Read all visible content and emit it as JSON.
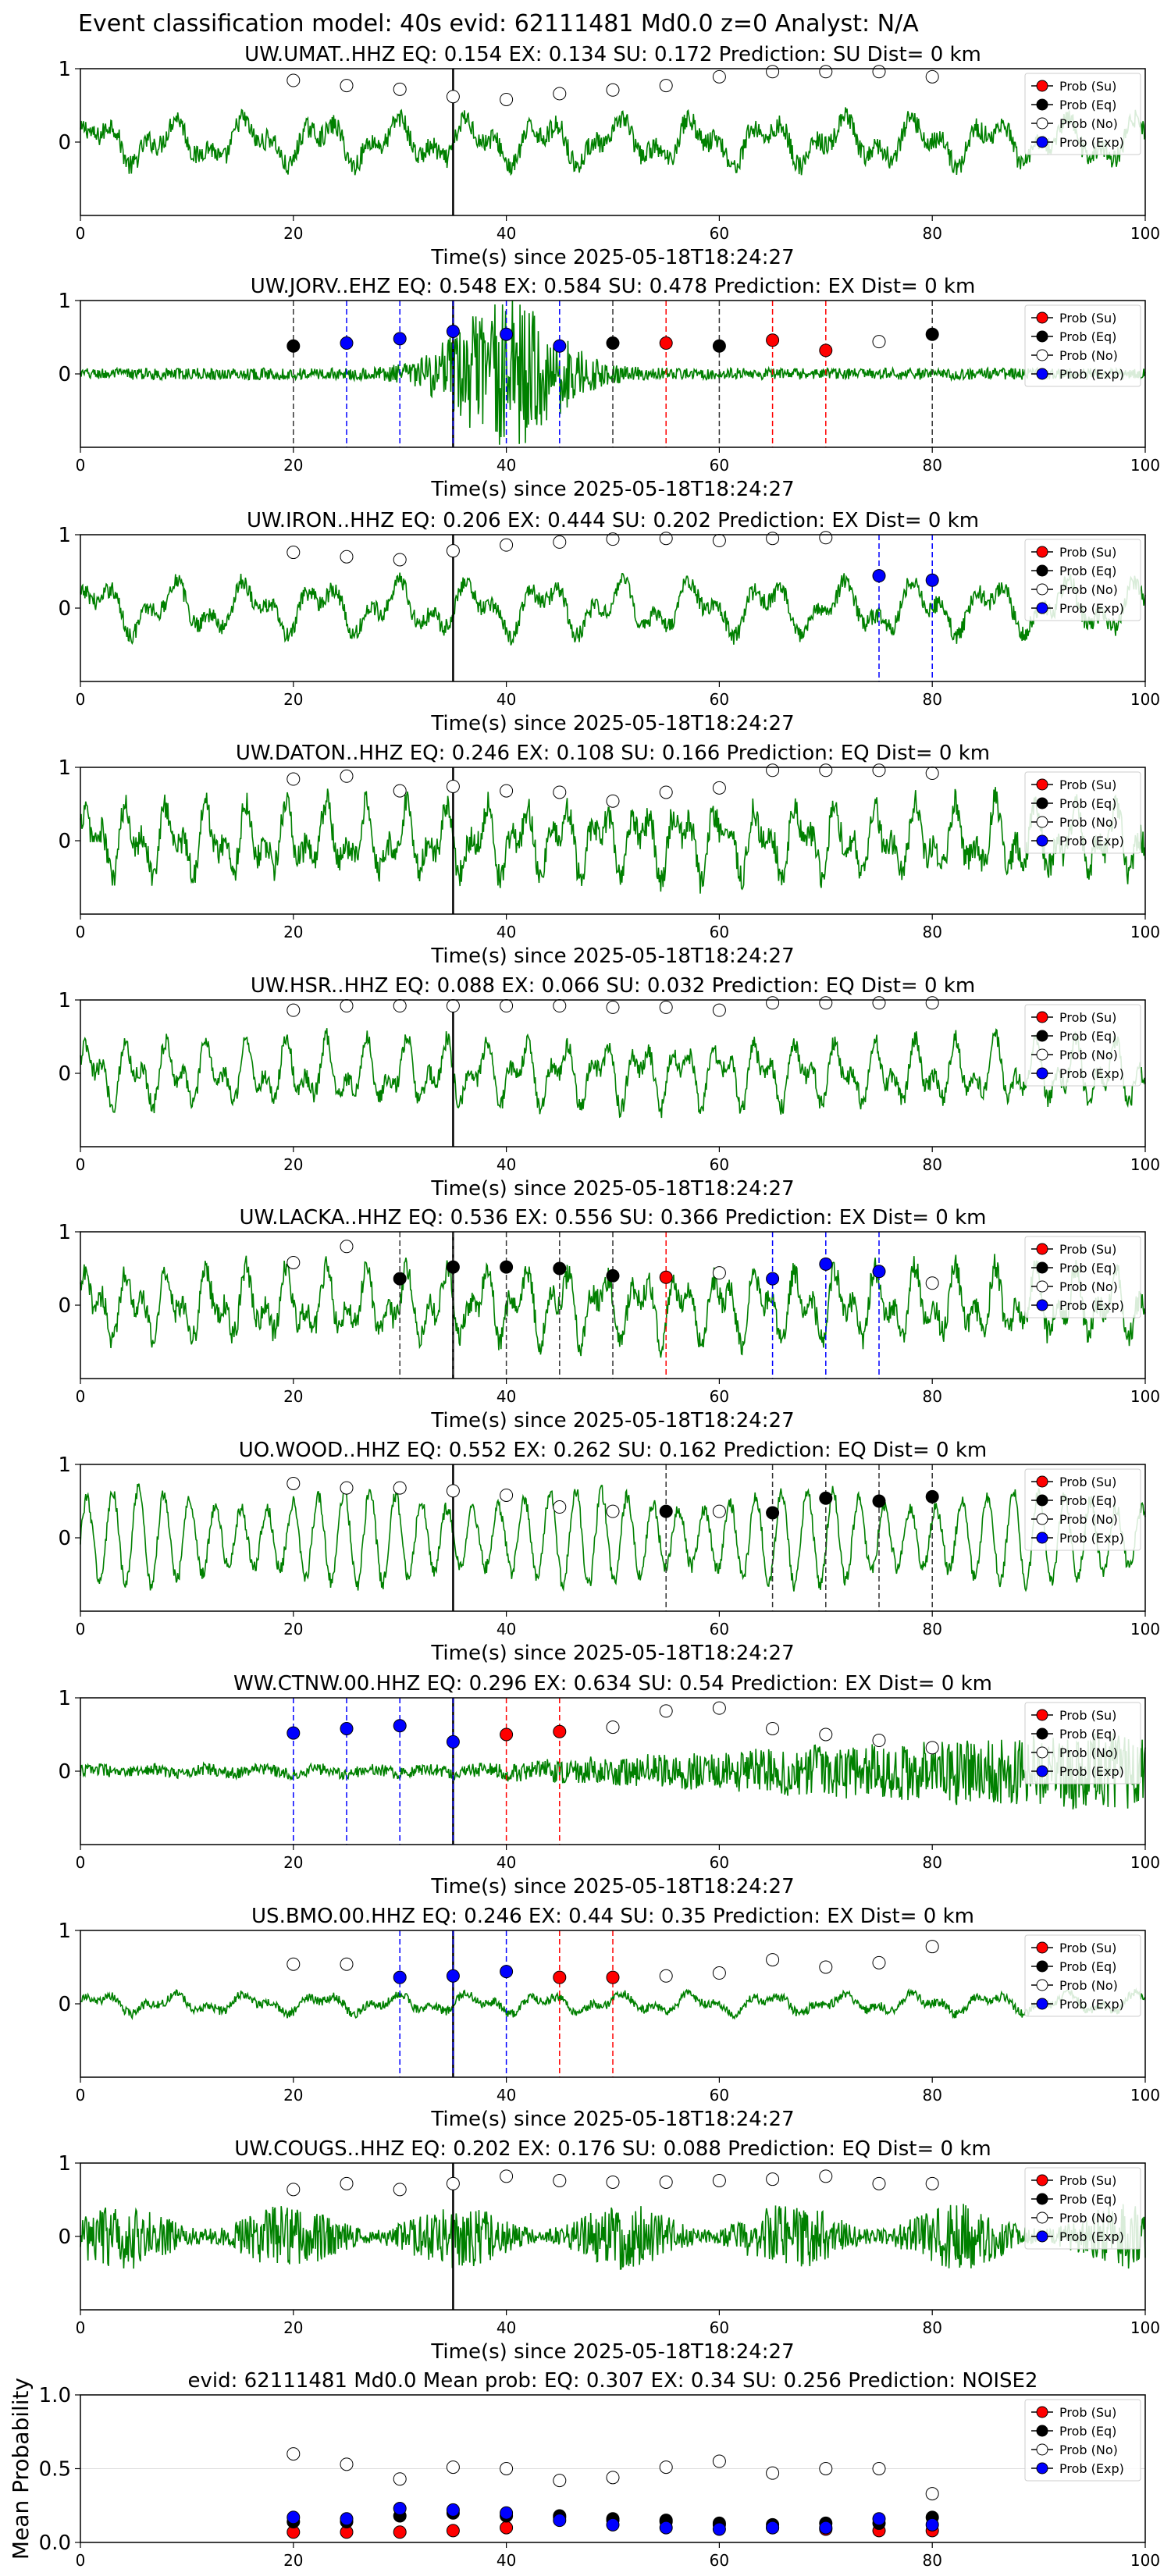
{
  "page_title": "Event classification model: 40s evid: 62111481 Md0.0 z=0 Analyst: N/A",
  "colors": {
    "su": "#ff0000",
    "eq": "#000000",
    "no": "#ffffff",
    "exp": "#0000ff",
    "trace": "#008000",
    "pick_line": "#000000"
  },
  "legend_labels": [
    "Prob (Su)",
    "Prob (Eq)",
    "Prob (No)",
    "Prob (Exp)"
  ],
  "chart_data": [
    {
      "type": "line",
      "title": "UW.UMAT..HHZ   EQ: 0.154  EX: 0.134  SU: 0.172   Prediction: SU    Dist= 0 km",
      "xlabel": "Time(s) since 2025-05-18T18:24:27",
      "xlim": [
        0,
        100
      ],
      "xticks": [
        0,
        20,
        40,
        60,
        80,
        100
      ],
      "ylim": [
        -1,
        1
      ],
      "yticks": [
        0,
        1
      ],
      "trace": {
        "name": "waveform",
        "amplitude": 0.35,
        "character": "low-freq",
        "noise": 0.4
      },
      "pick_time": 35,
      "points": {
        "x": [
          20,
          25,
          30,
          35,
          40,
          45,
          50,
          55,
          60,
          65,
          70,
          75,
          80
        ],
        "y": [
          0.84,
          0.77,
          0.72,
          0.62,
          0.58,
          0.66,
          0.71,
          0.77,
          0.89,
          0.96,
          0.96,
          0.96,
          0.89
        ],
        "classes": [
          "no",
          "no",
          "no",
          "no",
          "no",
          "no",
          "no",
          "no",
          "no",
          "no",
          "no",
          "no",
          "no"
        ]
      }
    },
    {
      "type": "line",
      "title": "UW.JORV..EHZ   EQ: 0.548  EX: 0.584  SU: 0.478   Prediction: EX    Dist= 0 km",
      "xlabel": "Time(s) since 2025-05-18T18:24:27",
      "xlim": [
        0,
        100
      ],
      "xticks": [
        0,
        20,
        40,
        60,
        80,
        100
      ],
      "ylim": [
        -1,
        1
      ],
      "yticks": [
        0,
        1
      ],
      "trace": {
        "name": "waveform",
        "amplitude": 0.08,
        "character": "quiet-burst",
        "burst_center": 40,
        "burst_width": 6,
        "burst_amp": 0.95
      },
      "pick_time": 35,
      "points": {
        "x": [
          20,
          25,
          30,
          35,
          40,
          45,
          50,
          55,
          60,
          65,
          70,
          75,
          80
        ],
        "y": [
          0.38,
          0.42,
          0.48,
          0.58,
          0.54,
          0.38,
          0.42,
          0.42,
          0.38,
          0.46,
          0.32,
          0.44,
          0.54
        ],
        "classes": [
          "eq",
          "exp",
          "exp",
          "exp",
          "exp",
          "exp",
          "eq",
          "su",
          "eq",
          "su",
          "su",
          "no",
          "eq"
        ]
      }
    },
    {
      "type": "line",
      "title": "UW.IRON..HHZ   EQ: 0.206  EX: 0.444  SU: 0.202   Prediction: EX    Dist= 0 km",
      "xlabel": "Time(s) since 2025-05-18T18:24:27",
      "xlim": [
        0,
        100
      ],
      "xticks": [
        0,
        20,
        40,
        60,
        80,
        100
      ],
      "ylim": [
        -1,
        1
      ],
      "yticks": [
        0,
        1
      ],
      "trace": {
        "name": "waveform",
        "amplitude": 0.4,
        "character": "low-freq",
        "noise": 0.3
      },
      "pick_time": 35,
      "points": {
        "x": [
          20,
          25,
          30,
          35,
          40,
          45,
          50,
          55,
          60,
          65,
          70,
          75,
          80
        ],
        "y": [
          0.76,
          0.7,
          0.66,
          0.78,
          0.86,
          0.9,
          0.94,
          0.95,
          0.92,
          0.95,
          0.96,
          0.44,
          0.38
        ],
        "classes": [
          "no",
          "no",
          "no",
          "no",
          "no",
          "no",
          "no",
          "no",
          "no",
          "no",
          "no",
          "exp",
          "exp"
        ]
      }
    },
    {
      "type": "line",
      "title": "UW.DATON..HHZ   EQ: 0.246  EX: 0.108  SU: 0.166   Prediction: EQ    Dist= 0 km",
      "xlabel": "Time(s) since 2025-05-18T18:24:27",
      "xlim": [
        0,
        100
      ],
      "xticks": [
        0,
        20,
        40,
        60,
        80,
        100
      ],
      "ylim": [
        -1,
        1
      ],
      "yticks": [
        0,
        1
      ],
      "trace": {
        "name": "waveform",
        "amplitude": 0.55,
        "character": "mid-freq",
        "noise": 0.35
      },
      "pick_time": 35,
      "points": {
        "x": [
          20,
          25,
          30,
          35,
          40,
          45,
          50,
          55,
          60,
          65,
          70,
          75,
          80
        ],
        "y": [
          0.84,
          0.88,
          0.68,
          0.74,
          0.68,
          0.66,
          0.54,
          0.66,
          0.72,
          0.96,
          0.96,
          0.96,
          0.92
        ],
        "classes": [
          "no",
          "no",
          "no",
          "no",
          "no",
          "no",
          "no",
          "no",
          "no",
          "no",
          "no",
          "no",
          "no"
        ]
      }
    },
    {
      "type": "line",
      "title": "UW.HSR..HHZ   EQ: 0.088  EX: 0.066  SU: 0.032   Prediction: EQ    Dist= 0 km",
      "xlabel": "Time(s) since 2025-05-18T18:24:27",
      "xlim": [
        0,
        100
      ],
      "xticks": [
        0,
        20,
        40,
        60,
        80,
        100
      ],
      "ylim": [
        -1,
        1
      ],
      "yticks": [
        0,
        1
      ],
      "trace": {
        "name": "waveform",
        "amplitude": 0.5,
        "character": "mid-freq",
        "noise": 0.25
      },
      "pick_time": 35,
      "points": {
        "x": [
          20,
          25,
          30,
          35,
          40,
          45,
          50,
          55,
          60,
          65,
          70,
          75,
          80
        ],
        "y": [
          0.86,
          0.92,
          0.92,
          0.92,
          0.92,
          0.92,
          0.9,
          0.9,
          0.86,
          0.96,
          0.96,
          0.96,
          0.96
        ],
        "classes": [
          "no",
          "no",
          "no",
          "no",
          "no",
          "no",
          "no",
          "no",
          "no",
          "no",
          "no",
          "no",
          "no"
        ]
      }
    },
    {
      "type": "line",
      "title": "UW.LACKA..HHZ   EQ: 0.536  EX: 0.556  SU: 0.366   Prediction: EX    Dist= 0 km",
      "xlabel": "Time(s) since 2025-05-18T18:24:27",
      "xlim": [
        0,
        100
      ],
      "xticks": [
        0,
        20,
        40,
        60,
        80,
        100
      ],
      "ylim": [
        -1,
        1
      ],
      "yticks": [
        0,
        1
      ],
      "trace": {
        "name": "waveform",
        "amplitude": 0.55,
        "character": "mid-freq",
        "noise": 0.3
      },
      "pick_time": 35,
      "points": {
        "x": [
          20,
          25,
          30,
          35,
          40,
          45,
          50,
          55,
          60,
          65,
          70,
          75,
          80
        ],
        "y": [
          0.58,
          0.8,
          0.36,
          0.52,
          0.52,
          0.5,
          0.4,
          0.38,
          0.44,
          0.36,
          0.56,
          0.46,
          0.3
        ],
        "classes": [
          "no",
          "no",
          "eq",
          "eq",
          "eq",
          "eq",
          "eq",
          "su",
          "no",
          "exp",
          "exp",
          "exp",
          "no"
        ]
      }
    },
    {
      "type": "line",
      "title": "UO.WOOD..HHZ   EQ: 0.552  EX: 0.262  SU: 0.162   Prediction: EQ    Dist= 0 km",
      "xlabel": "Time(s) since 2025-05-18T18:24:27",
      "xlim": [
        0,
        100
      ],
      "xticks": [
        0,
        20,
        40,
        60,
        80,
        100
      ],
      "ylim": [
        -1,
        1
      ],
      "yticks": [
        0,
        1
      ],
      "trace": {
        "name": "waveform",
        "amplitude": 0.65,
        "character": "oscillating",
        "noise": 0.15
      },
      "pick_time": 35,
      "points": {
        "x": [
          20,
          25,
          30,
          35,
          40,
          45,
          50,
          55,
          60,
          65,
          70,
          75,
          80
        ],
        "y": [
          0.74,
          0.68,
          0.68,
          0.64,
          0.58,
          0.42,
          0.36,
          0.36,
          0.36,
          0.34,
          0.54,
          0.5,
          0.56
        ],
        "classes": [
          "no",
          "no",
          "no",
          "no",
          "no",
          "no",
          "no",
          "eq",
          "no",
          "eq",
          "eq",
          "eq",
          "eq"
        ]
      }
    },
    {
      "type": "line",
      "title": "WW.CTNW.00.HHZ   EQ: 0.296  EX: 0.634  SU: 0.54   Prediction: EX    Dist= 0 km",
      "xlabel": "Time(s) since 2025-05-18T18:24:27",
      "xlim": [
        0,
        100
      ],
      "xticks": [
        0,
        20,
        40,
        60,
        80,
        100
      ],
      "ylim": [
        -1,
        1
      ],
      "yticks": [
        0,
        1
      ],
      "trace": {
        "name": "waveform",
        "amplitude": 0.1,
        "character": "growing",
        "noise": 0.1
      },
      "pick_time": 35,
      "points": {
        "x": [
          20,
          25,
          30,
          35,
          40,
          45,
          50,
          55,
          60,
          65,
          70,
          75,
          80
        ],
        "y": [
          0.52,
          0.58,
          0.62,
          0.4,
          0.5,
          0.54,
          0.6,
          0.82,
          0.86,
          0.58,
          0.5,
          0.42,
          0.32
        ],
        "classes": [
          "exp",
          "exp",
          "exp",
          "exp",
          "su",
          "su",
          "no",
          "no",
          "no",
          "no",
          "no",
          "no",
          "no"
        ]
      }
    },
    {
      "type": "line",
      "title": "US.BMO.00.HHZ   EQ: 0.246  EX: 0.44  SU: 0.35   Prediction: EX    Dist= 0 km",
      "xlabel": "Time(s) since 2025-05-18T18:24:27",
      "xlim": [
        0,
        100
      ],
      "xticks": [
        0,
        20,
        40,
        60,
        80,
        100
      ],
      "ylim": [
        -1,
        1
      ],
      "yticks": [
        0,
        1
      ],
      "trace": {
        "name": "waveform",
        "amplitude": 0.15,
        "character": "low-freq",
        "noise": 0.4
      },
      "pick_time": 35,
      "points": {
        "x": [
          20,
          25,
          30,
          35,
          40,
          45,
          50,
          55,
          60,
          65,
          70,
          75,
          80
        ],
        "y": [
          0.54,
          0.54,
          0.36,
          0.38,
          0.44,
          0.36,
          0.36,
          0.38,
          0.42,
          0.6,
          0.5,
          0.56,
          0.78
        ],
        "classes": [
          "no",
          "no",
          "exp",
          "exp",
          "exp",
          "su",
          "su",
          "no",
          "no",
          "no",
          "no",
          "no",
          "no"
        ]
      }
    },
    {
      "type": "line",
      "title": "UW.COUGS..HHZ   EQ: 0.202  EX: 0.176  SU: 0.088   Prediction: EQ    Dist= 0 km",
      "xlabel": "Time(s) since 2025-05-18T18:24:27",
      "xlim": [
        0,
        100
      ],
      "xticks": [
        0,
        20,
        40,
        60,
        80,
        100
      ],
      "ylim": [
        -1,
        1
      ],
      "yticks": [
        0,
        1
      ],
      "trace": {
        "name": "waveform",
        "amplitude": 0.35,
        "character": "dense",
        "noise": 0.6
      },
      "pick_time": 35,
      "points": {
        "x": [
          20,
          25,
          30,
          35,
          40,
          45,
          50,
          55,
          60,
          65,
          70,
          75,
          80
        ],
        "y": [
          0.64,
          0.72,
          0.64,
          0.72,
          0.82,
          0.76,
          0.74,
          0.74,
          0.76,
          0.78,
          0.82,
          0.72,
          0.72
        ],
        "classes": [
          "no",
          "no",
          "no",
          "no",
          "no",
          "no",
          "no",
          "no",
          "no",
          "no",
          "no",
          "no",
          "no"
        ]
      }
    },
    {
      "type": "scatter",
      "title": "evid: 62111481  Md0.0   Mean prob:   EQ: 0.307  EX: 0.34  SU: 0.256   Prediction: NOISE2",
      "ylabel": "Mean Probability",
      "xlim": [
        0,
        100
      ],
      "xticks": [
        0,
        20,
        40,
        60,
        80,
        100
      ],
      "ylim": [
        0,
        1
      ],
      "yticks": [
        0,
        0.5,
        1
      ],
      "xticklabels": [
        "0",
        "20",
        "40",
        "60",
        "80",
        "100"
      ],
      "yticklabels": [
        "0.0",
        "0.5",
        "1.0"
      ],
      "series": [
        {
          "name": "Prob (Su)",
          "cls": "su",
          "x": [
            20,
            25,
            30,
            35,
            40,
            45,
            50,
            55,
            60,
            65,
            70,
            75,
            80
          ],
          "y": [
            0.07,
            0.07,
            0.07,
            0.08,
            0.1,
            0.17,
            0.15,
            0.14,
            0.12,
            0.1,
            0.09,
            0.08,
            0.08
          ]
        },
        {
          "name": "Prob (Eq)",
          "cls": "eq",
          "x": [
            20,
            25,
            30,
            35,
            40,
            45,
            50,
            55,
            60,
            65,
            70,
            75,
            80
          ],
          "y": [
            0.14,
            0.14,
            0.18,
            0.2,
            0.18,
            0.18,
            0.16,
            0.15,
            0.13,
            0.12,
            0.13,
            0.13,
            0.17
          ]
        },
        {
          "name": "Prob (No)",
          "cls": "no",
          "x": [
            20,
            25,
            30,
            35,
            40,
            45,
            50,
            55,
            60,
            65,
            70,
            75,
            80
          ],
          "y": [
            0.6,
            0.53,
            0.43,
            0.51,
            0.5,
            0.42,
            0.44,
            0.51,
            0.55,
            0.47,
            0.5,
            0.5,
            0.33
          ]
        },
        {
          "name": "Prob (Exp)",
          "cls": "exp",
          "x": [
            20,
            25,
            30,
            35,
            40,
            45,
            50,
            55,
            60,
            65,
            70,
            75,
            80
          ],
          "y": [
            0.17,
            0.16,
            0.23,
            0.22,
            0.2,
            0.15,
            0.12,
            0.1,
            0.09,
            0.1,
            0.1,
            0.16,
            0.12
          ]
        }
      ]
    }
  ]
}
